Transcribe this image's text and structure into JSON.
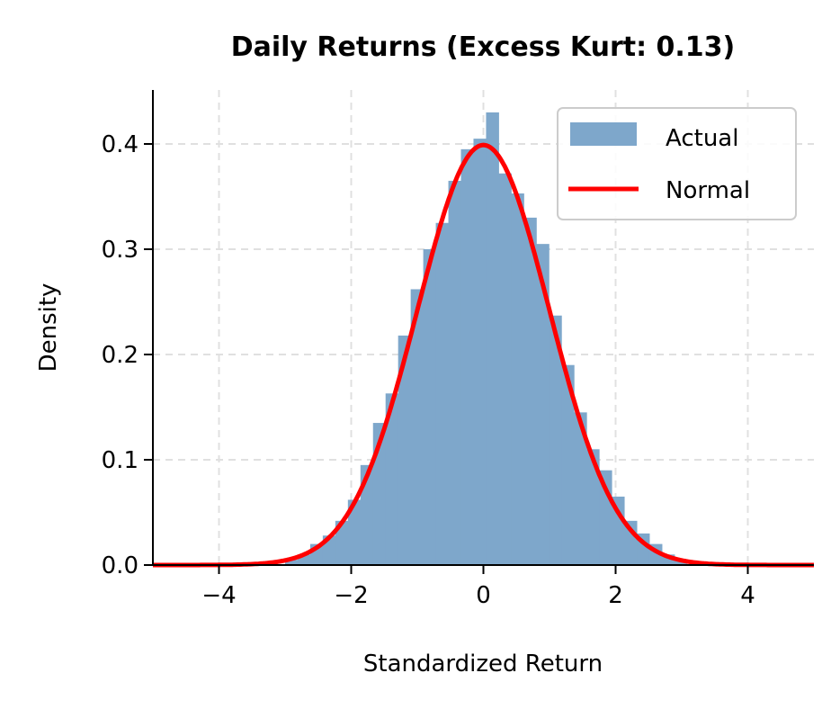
{
  "chart_data": {
    "type": "bar",
    "title": "Daily Returns (Excess Kurt: 0.13)",
    "xlabel": "Standardized Return",
    "ylabel": "Density",
    "xlim": [
      -5,
      5
    ],
    "ylim": [
      0,
      0.45
    ],
    "xticks": [
      -4,
      -2,
      0,
      2,
      4
    ],
    "xtick_labels": [
      "−4",
      "−2",
      "0",
      "2",
      "4"
    ],
    "yticks": [
      0.0,
      0.1,
      0.2,
      0.3,
      0.4
    ],
    "ytick_labels": [
      "0.0",
      "0.1",
      "0.2",
      "0.3",
      "0.4"
    ],
    "grid": true,
    "legend_position": "upper right",
    "legend": [
      {
        "label": "Actual",
        "type": "patch",
        "color": "#7ea7cb"
      },
      {
        "label": "Normal",
        "type": "line",
        "color": "#ff0000"
      }
    ],
    "bin_width": 0.19,
    "bin_values_are_estimates": true,
    "histogram": {
      "name": "Actual",
      "color": "#7ea7cb",
      "bin_edges_start": -3.0,
      "densities": [
        0.005,
        0.01,
        0.02,
        0.028,
        0.042,
        0.062,
        0.095,
        0.135,
        0.163,
        0.218,
        0.262,
        0.3,
        0.325,
        0.365,
        0.395,
        0.405,
        0.43,
        0.372,
        0.353,
        0.33,
        0.305,
        0.237,
        0.19,
        0.145,
        0.11,
        0.09,
        0.065,
        0.042,
        0.03,
        0.02,
        0.01,
        0.005
      ]
    },
    "curve": {
      "name": "Normal",
      "color": "#ff0000",
      "distribution": "normal",
      "mean": 0,
      "std": 1,
      "peak": 0.399
    }
  }
}
